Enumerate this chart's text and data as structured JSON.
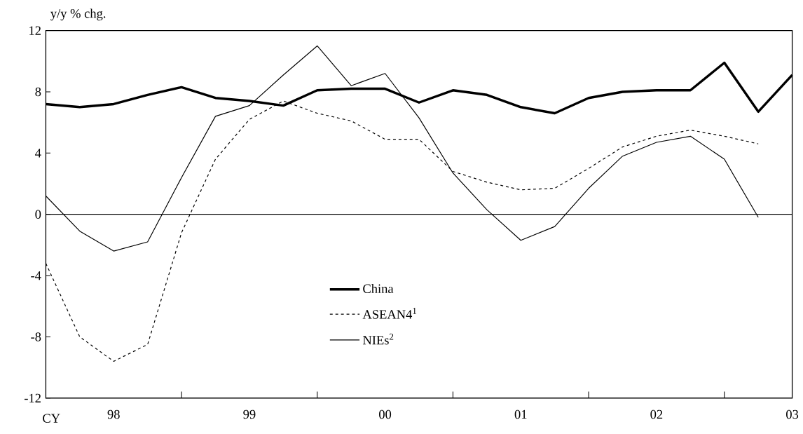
{
  "chart_data": {
    "type": "line",
    "ylabel": "y/y % chg.",
    "categories": [
      null,
      null,
      "98",
      null,
      null,
      null,
      "99",
      null,
      null,
      null,
      "00",
      null,
      null,
      null,
      "01",
      null,
      null,
      null,
      "02",
      null,
      null,
      null,
      "03"
    ],
    "series": [
      {
        "name": "China",
        "color": "#000000",
        "line_style": "solid",
        "values": [
          7.2,
          7.0,
          7.2,
          7.8,
          8.3,
          7.6,
          7.4,
          7.1,
          8.1,
          8.2,
          8.2,
          7.3,
          8.1,
          7.8,
          7.0,
          6.6,
          7.6,
          8.0,
          8.1,
          8.1,
          9.9,
          6.7,
          9.1
        ]
      },
      {
        "name": "ASEAN4$^{1}$",
        "color": "#000000",
        "line_style": "dashed",
        "values": [
          -3.2,
          -8.0,
          -9.6,
          -8.5,
          -1.2,
          3.6,
          6.2,
          7.4,
          6.6,
          6.1,
          4.9,
          4.9,
          2.8,
          2.1,
          1.6,
          1.7,
          3.0,
          4.4,
          5.1,
          5.5,
          5.1,
          4.6,
          null
        ]
      },
      {
        "name": "NIEs$^{2}$",
        "color": "#000000",
        "line_style": "solid",
        "values": [
          1.2,
          -1.1,
          -2.4,
          -1.8,
          2.4,
          6.4,
          7.1,
          9.1,
          11.0,
          8.4,
          9.2,
          6.3,
          2.7,
          0.3,
          -1.7,
          -0.8,
          1.7,
          3.8,
          4.7,
          5.1,
          3.6,
          -0.2,
          null
        ]
      }
    ],
    "ylim": [
      -12,
      12
    ],
    "yticks": [
      -12,
      -8,
      -4,
      0,
      4,
      8,
      12
    ],
    "ref_lines": [
      {
        "axis": "y",
        "value": 0
      }
    ],
    "annotations": [
      "CY"
    ],
    "grid": false,
    "legend": "bottom",
    "marker": "none"
  }
}
